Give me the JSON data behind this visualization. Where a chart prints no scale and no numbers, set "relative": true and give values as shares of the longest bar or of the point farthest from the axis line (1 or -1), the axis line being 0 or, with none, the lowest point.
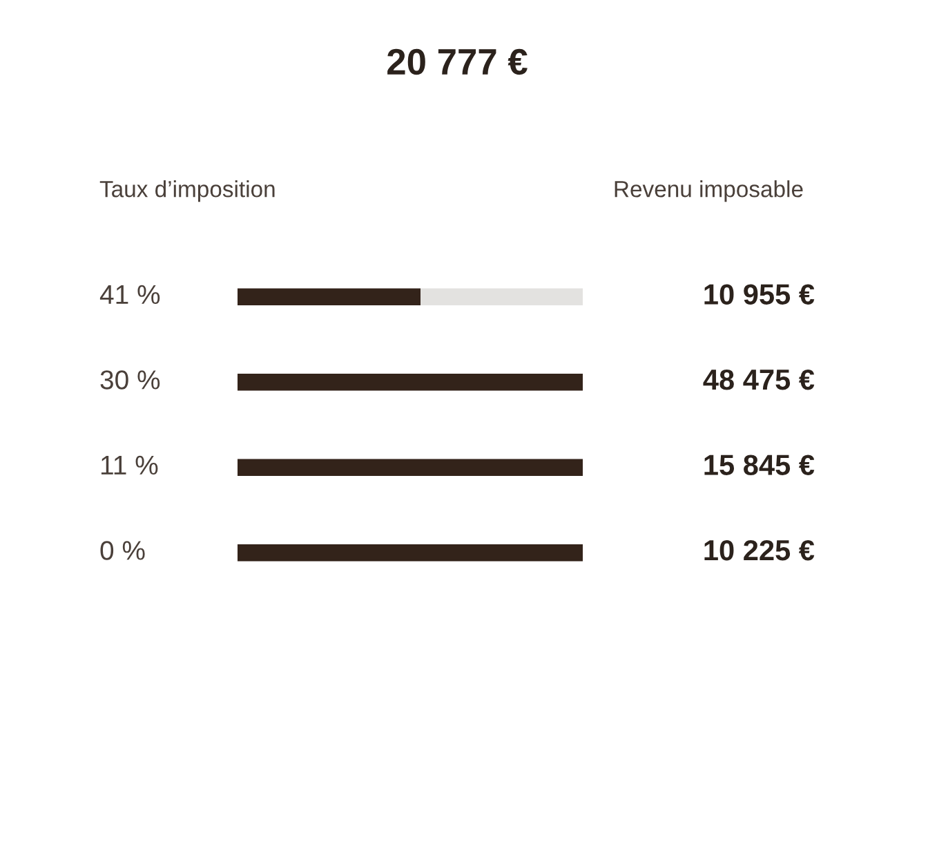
{
  "chart_data": {
    "type": "bar",
    "orientation": "horizontal",
    "stacked": true,
    "relative": true,
    "title": "20 777 €",
    "categories": [
      "41 %",
      "30 %",
      "11 %",
      "0 %"
    ],
    "series": [
      {
        "color": "#33231a",
        "values": [
          0.53,
          1,
          1,
          1
        ]
      },
      {
        "color": "#e3e2e0",
        "values": [
          0.47,
          0,
          0,
          0
        ]
      }
    ],
    "annotations": [
      "Taux d’imposition",
      "Revenu imposable",
      "10 955 €",
      "48 475 €",
      "15 845 €",
      "10 225 €"
    ],
    "legend": false
  }
}
